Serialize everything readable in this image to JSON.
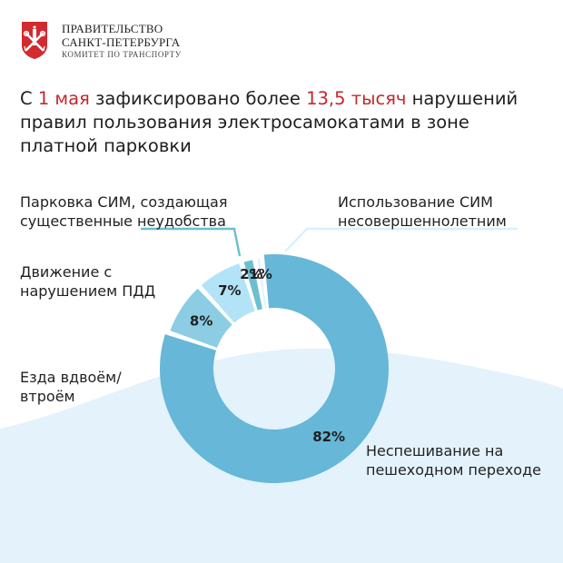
{
  "header": {
    "org_line1": "ПРАВИТЕЛЬСТВО",
    "org_line2": "САНКТ-ПЕТЕРБУРГА",
    "org_line3": "КОМИТЕТ ПО ТРАНСПОРТУ",
    "emblem_icon": "spb-coat-of-arms-icon"
  },
  "headline": {
    "part1": "С ",
    "accent1": "1 мая",
    "part2": " зафиксировано более ",
    "accent2": "13,5 тысяч",
    "part3": " нарушений правил пользования электросамокатами в зоне платной парковки"
  },
  "colors": {
    "accent_red": "#c8262b",
    "background_wave": "#e3f2fb",
    "slice_ped": "#66b7d8",
    "slice_two": "#8ccde4",
    "slice_move": "#b3e3f7",
    "slice_park": "#6cbfcf",
    "slice_minor": "#d6f1fb"
  },
  "chart_data": {
    "type": "pie",
    "title": "",
    "donut": true,
    "unit": "%",
    "slices": [
      {
        "label": "Использование СИМ несовершеннолетним",
        "value": 1,
        "display": "1%"
      },
      {
        "label": "Неспешивание на пешеходном переходе",
        "value": 82,
        "display": "82%"
      },
      {
        "label": "Езда вдвоём/ втроём",
        "value": 8,
        "display": "8%"
      },
      {
        "label": "Движение с нарушением ПДД",
        "value": 7,
        "display": "7%"
      },
      {
        "label": "Парковка СИМ, создающая существенные неудобства",
        "value": 2,
        "display": "2%"
      }
    ],
    "legend": "callout-labels"
  }
}
